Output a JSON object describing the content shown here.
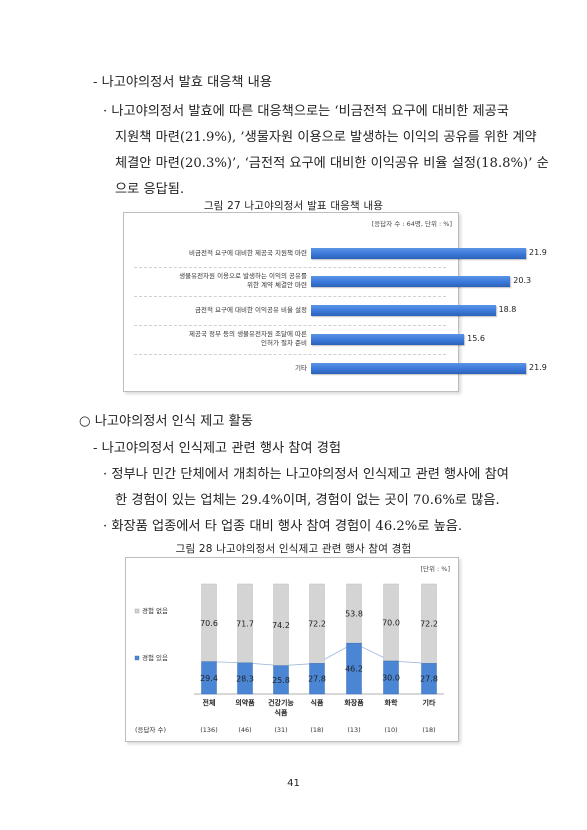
{
  "section1": {
    "heading": "- 나고야의정서 발효 대응책 내용",
    "bullet_lines": [
      "· 나고야의정서 발효에 따른 대응책으로는 ‘비금전적 요구에 대비한 제공국",
      "지원책 마련(21.9%), ’생물자원 이용으로 발생하는 이익의 공유를 위한 계약",
      "체결안 마련(20.3%)’, ‘금전적 요구에 대비한 이익공유 비율 설정(18.8%)’ 순",
      "으로 응답됨."
    ]
  },
  "figure27": {
    "caption": "그림 27 나고야의정서 발표 대응책 내용",
    "unit": "[응답자 수 : 64명, 단위 : %]",
    "chart_data": {
      "type": "bar",
      "orientation": "horizontal",
      "categories": [
        "비금전적 요구에 대비한 제공국 지원책 마련",
        "생물유전자원 이용으로 발생하는 이익의 공유를\n위한 계약 체결안 마련",
        "금전적 요구에 대비한 이익공유 비율 설정",
        "제공국 정부 등의 생물유전자원 조달에 따른\n인허가 절차 준비",
        "기타"
      ],
      "values": [
        21.9,
        20.3,
        18.8,
        15.6,
        21.9
      ],
      "bar_color": "#3b78d8"
    }
  },
  "section2": {
    "heading": "○ 나고야의정서 인식 제고 활동",
    "subheading": "- 나고야의정서 인식제고 관련 행사 참여 경험",
    "bullet1_lines": [
      "· 정부나 민간 단체에서 개최하는 나고야의정서 인식제고 관련 행사에 참여",
      "한 경험이 있는 업체는 29.4%이며, 경험이 없는 곳이 70.6%로 많음."
    ],
    "bullet2": "· 화장품 업종에서 타 업종 대비 행사 참여 경험이 46.2%로 높음."
  },
  "figure28": {
    "caption": "그림 28 나고야의정서 인식제고 관련 행사 참여 경험",
    "unit": "[단위 : %]",
    "respondents_label": "(응답자 수)",
    "respondents": [
      "(136)",
      "(46)",
      "(31)",
      "(18)",
      "(13)",
      "(10)",
      "(18)"
    ],
    "chart_data": {
      "type": "bar",
      "stacked": true,
      "categories": [
        "전체",
        "의약품",
        "건강기능\n식품",
        "식품",
        "화장품",
        "화학",
        "기타"
      ],
      "series": [
        {
          "name": "경험 있음",
          "values": [
            29.4,
            28.3,
            25.8,
            27.8,
            46.2,
            30.0,
            27.8
          ],
          "color": "#4a86d4"
        },
        {
          "name": "경험 없음",
          "values": [
            70.6,
            71.7,
            74.2,
            72.2,
            53.8,
            70.0,
            72.2
          ],
          "color": "#d4d4d4"
        }
      ],
      "value_labels_have": [
        "29.4",
        "28.3",
        "25.8",
        "27.8",
        "46.2",
        "30.0",
        "27.8"
      ],
      "value_labels_not": [
        "70.6",
        "71.7",
        "74.2",
        "72.2",
        "53.8",
        "70.0",
        "72.2"
      ],
      "legend_position": "left",
      "ylim": [
        0,
        100
      ]
    }
  },
  "page_number": "41"
}
